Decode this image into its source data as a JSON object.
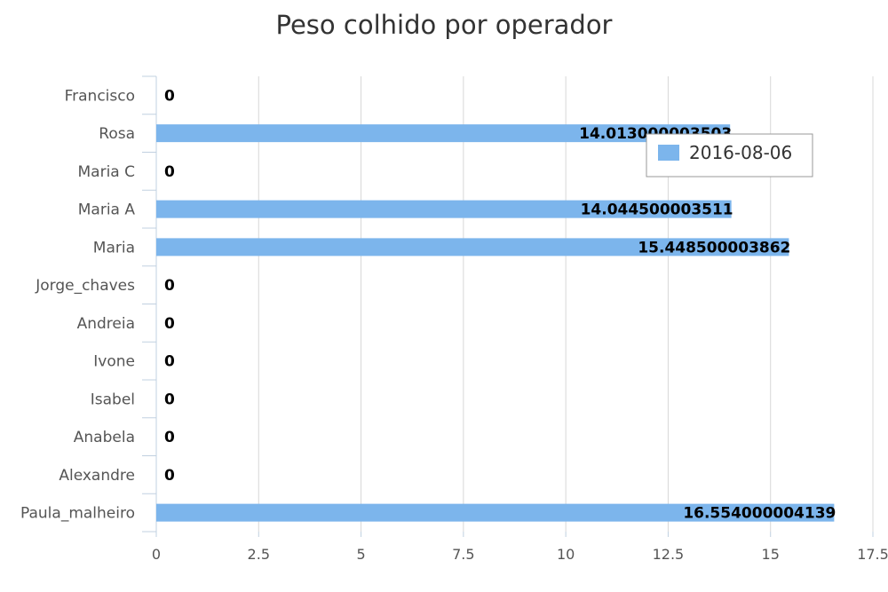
{
  "chart_data": {
    "type": "bar",
    "orientation": "horizontal",
    "title": "Peso colhido por operador",
    "categories": [
      "Francisco",
      "Rosa",
      "Maria C",
      "Maria A",
      "Maria",
      "Jorge_chaves",
      "Andreia",
      "Ivone",
      "Isabel",
      "Anabela",
      "Alexandre",
      "Paula_malheiro"
    ],
    "series": [
      {
        "name": "2016-08-06",
        "color": "#7cb5ec",
        "values": [
          0,
          14.013000003503,
          0,
          14.044500003511,
          15.448500003862,
          0,
          0,
          0,
          0,
          0,
          0,
          16.554000004139
        ],
        "labels": [
          "0",
          "14.013000003503",
          "0",
          "14.044500003511",
          "15.448500003862",
          "0",
          "0",
          "0",
          "0",
          "0",
          "0",
          "16.554000004139"
        ]
      }
    ],
    "x_ticks": [
      "0",
      "2.5",
      "5",
      "7.5",
      "10",
      "12.5",
      "15",
      "17.5"
    ],
    "xlim": [
      0,
      17.5
    ],
    "grid": true,
    "legend_position": "top-right"
  }
}
